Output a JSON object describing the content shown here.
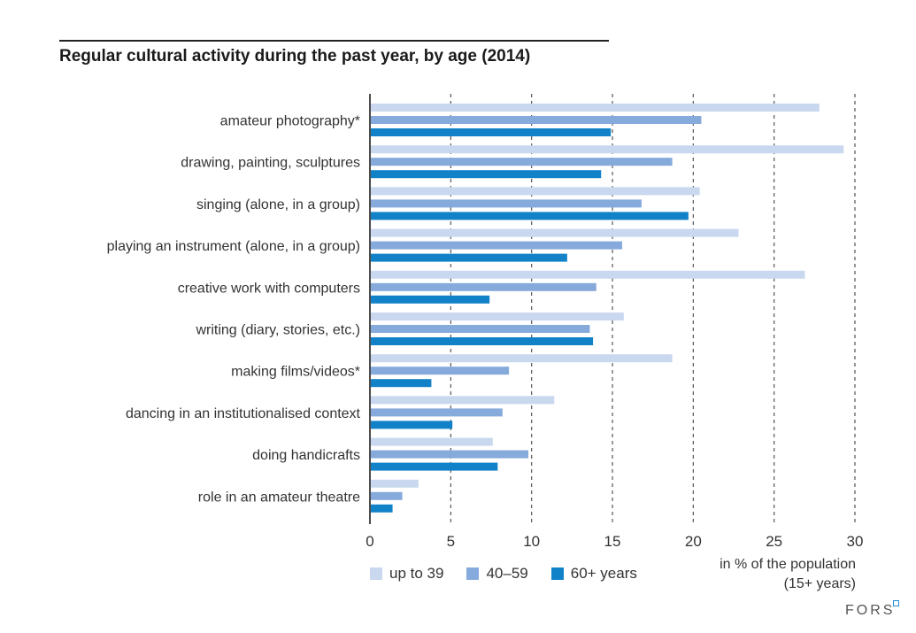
{
  "chart_data": {
    "type": "bar",
    "orientation": "horizontal",
    "title": "Regular cultural activity during the past year, by age (2014)",
    "categories": [
      "amateur photography*",
      "drawing, painting, sculptures",
      "singing (alone, in a group)",
      "playing an instrument (alone, in a group)",
      "creative work with computers",
      "writing (diary, stories, etc.)",
      "making films/videos*",
      "dancing in an institutionalised context",
      "doing handicrafts",
      "role in an amateur theatre"
    ],
    "series": [
      {
        "name": "up to 39",
        "color": "#c9d8ef",
        "values": [
          27.8,
          29.3,
          20.4,
          22.8,
          26.9,
          15.7,
          18.7,
          11.4,
          7.6,
          3.0
        ]
      },
      {
        "name": "40–59",
        "color": "#85aadb",
        "values": [
          20.5,
          18.7,
          16.8,
          15.6,
          14.0,
          13.6,
          8.6,
          8.2,
          9.8,
          2.0
        ]
      },
      {
        "name": "60+ years",
        "color": "#1282c8",
        "values": [
          14.9,
          14.3,
          19.7,
          12.2,
          7.4,
          13.8,
          3.8,
          5.1,
          7.9,
          1.4
        ]
      }
    ],
    "xlim": [
      0,
      30
    ],
    "xticks": [
      "0",
      "5",
      "10",
      "15",
      "20",
      "25",
      "30"
    ],
    "xtick_values": [
      0,
      5,
      10,
      15,
      20,
      25,
      30
    ],
    "xlabel_line1": "in % of the population",
    "xlabel_line2": "(15+ years)",
    "grid": true,
    "legend_position": "bottom-left"
  },
  "brand": "FORS"
}
